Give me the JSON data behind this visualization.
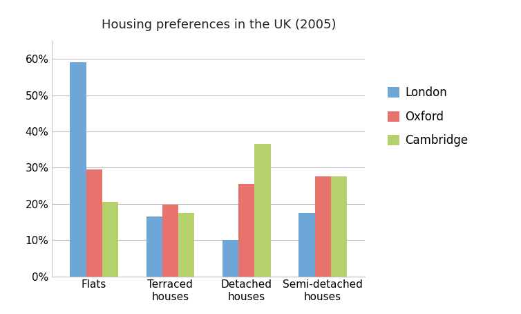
{
  "title": "Housing preferences in the UK (2005)",
  "categories": [
    "Flats",
    "Terraced\nhouses",
    "Detached\nhouses",
    "Semi-detached\nhouses"
  ],
  "series": {
    "London": [
      0.59,
      0.165,
      0.1,
      0.175
    ],
    "Oxford": [
      0.295,
      0.197,
      0.255,
      0.275
    ],
    "Cambridge": [
      0.205,
      0.175,
      0.365,
      0.275
    ]
  },
  "colors": {
    "London": "#6EA6D7",
    "Oxford": "#E8736C",
    "Cambridge": "#B5D16B"
  },
  "legend_order": [
    "London",
    "Oxford",
    "Cambridge"
  ],
  "ylim": [
    0,
    0.65
  ],
  "yticks": [
    0.0,
    0.1,
    0.2,
    0.3,
    0.4,
    0.5,
    0.6
  ],
  "bar_width": 0.21,
  "background_color": "#ffffff",
  "title_fontsize": 13,
  "tick_fontsize": 11,
  "legend_fontsize": 12
}
